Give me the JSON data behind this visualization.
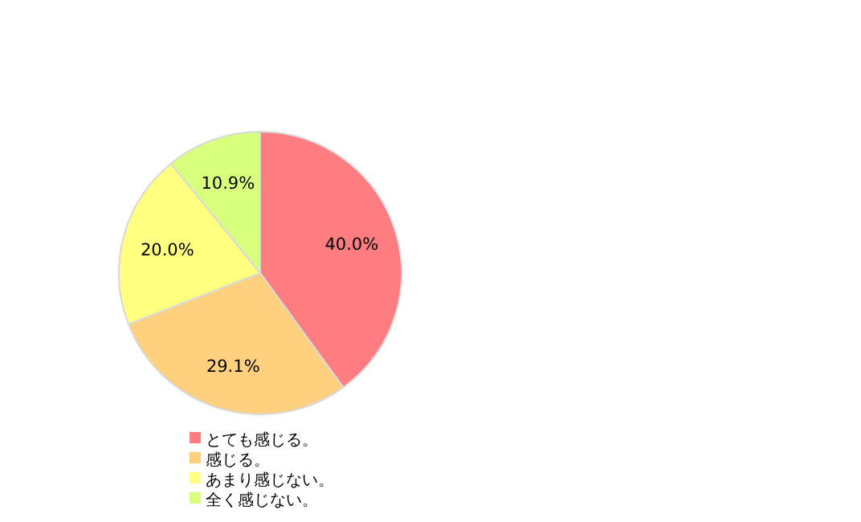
{
  "chart_data": {
    "type": "pie",
    "categories": [
      "とても感じる。",
      "感じる。",
      "あまり感じない。",
      "全く感じない。"
    ],
    "values": [
      40.0,
      29.1,
      20.0,
      10.9
    ],
    "value_labels": [
      "40.0%",
      "29.1%",
      "20.0%",
      "10.9%"
    ],
    "colors": [
      "#ff7c80",
      "#ffd17f",
      "#ffff80",
      "#d9ff7f"
    ],
    "legend": "bottom"
  }
}
